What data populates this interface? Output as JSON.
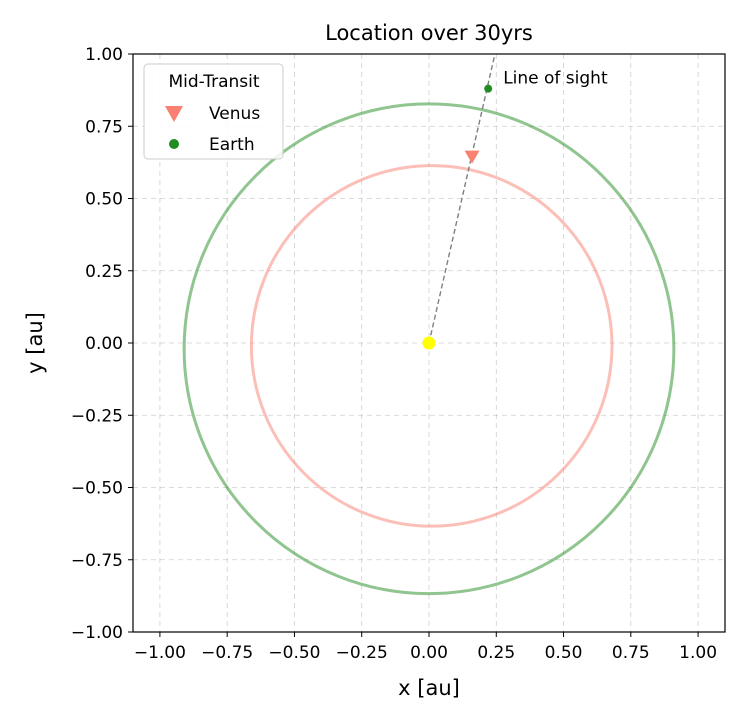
{
  "chart_data": {
    "type": "scatter",
    "title": "Location over 30yrs",
    "xlabel": "x [au]",
    "ylabel": "y [au]",
    "xlim": [
      -1.1,
      1.1
    ],
    "ylim": [
      -1.0,
      1.0
    ],
    "xticks": [
      -1.0,
      -0.75,
      -0.5,
      -0.25,
      0.0,
      0.25,
      0.5,
      0.75,
      1.0
    ],
    "yticks": [
      -1.0,
      -0.75,
      -0.5,
      -0.25,
      0.0,
      0.25,
      0.5,
      0.75,
      1.0
    ],
    "xtick_labels": [
      "−1.00",
      "−0.75",
      "−0.50",
      "−0.25",
      "0.00",
      "0.25",
      "0.50",
      "0.75",
      "1.00"
    ],
    "ytick_labels": [
      "−1.00",
      "−0.75",
      "−0.50",
      "−0.25",
      "0.00",
      "0.25",
      "0.50",
      "0.75",
      "1.00"
    ],
    "grid": true,
    "legend": {
      "title": "Mid-Transit",
      "placement": "top-left",
      "entries": [
        "Venus",
        "Earth"
      ]
    },
    "orbits": [
      {
        "name": "Venus",
        "color": "#fa8072",
        "alpha": 0.5,
        "cx": 0.01,
        "cy": -0.01,
        "r": 0.67
      },
      {
        "name": "Earth",
        "color": "#228b22",
        "alpha": 0.5,
        "cx": 0.0,
        "cy": -0.02,
        "r": 0.91
      }
    ],
    "sun": {
      "x": 0.0,
      "y": 0.0,
      "color": "#ffff00"
    },
    "markers": [
      {
        "name": "Venus",
        "x": 0.16,
        "y": 0.645,
        "shape": "triangle-down",
        "color": "#fa8072"
      },
      {
        "name": "Earth",
        "x": 0.22,
        "y": 0.88,
        "shape": "circle",
        "color": "#228b22"
      }
    ],
    "line_of_sight": {
      "label": "Line of sight",
      "x0": 0.0,
      "y0": 0.0,
      "x1": 0.245,
      "y1": 1.0,
      "color": "#7f7f7f"
    }
  }
}
